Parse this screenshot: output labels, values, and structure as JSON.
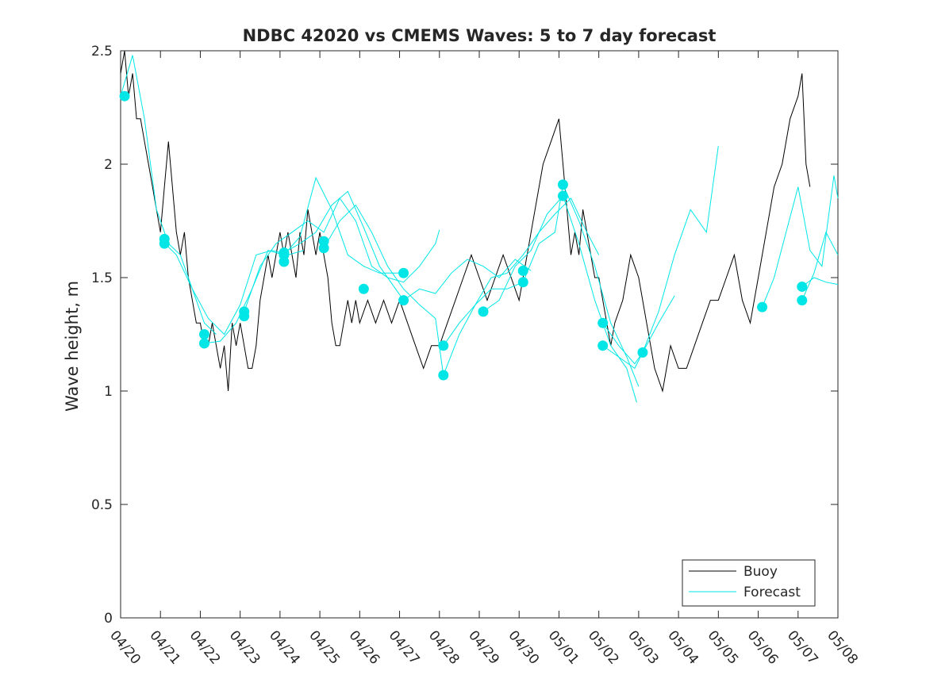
{
  "chart_data": {
    "type": "line",
    "title": "NDBC 42020 vs CMEMS Waves: 5 to 7 day forecast",
    "xlabel": "",
    "ylabel": "Wave height, m",
    "xlim": [
      "04/20",
      "05/08"
    ],
    "ylim": [
      0,
      2.5
    ],
    "x_unit": "days since 04/20",
    "x_ticks": [
      "04/20",
      "04/21",
      "04/22",
      "04/23",
      "04/24",
      "04/25",
      "04/26",
      "04/27",
      "04/28",
      "04/29",
      "04/30",
      "05/01",
      "05/02",
      "05/03",
      "05/04",
      "05/05",
      "05/06",
      "05/07",
      "05/08"
    ],
    "y_ticks": [
      "0",
      "0.5",
      "1",
      "1.5",
      "2",
      "2.5"
    ],
    "grid": false,
    "legend": {
      "position": "bottom-right",
      "entries": [
        "Buoy",
        "Forecast"
      ]
    },
    "colors": {
      "buoy": "#000000",
      "forecast": "#00e6e6",
      "axes": "#262626"
    },
    "series": [
      {
        "name": "Buoy",
        "color": "#000000",
        "x": [
          0,
          0.1,
          0.2,
          0.3,
          0.4,
          0.5,
          0.6,
          0.7,
          0.8,
          0.9,
          1.0,
          1.1,
          1.2,
          1.3,
          1.4,
          1.5,
          1.6,
          1.7,
          1.8,
          1.9,
          2.0,
          2.1,
          2.2,
          2.3,
          2.4,
          2.5,
          2.6,
          2.7,
          2.8,
          2.9,
          3.0,
          3.1,
          3.2,
          3.3,
          3.4,
          3.5,
          3.6,
          3.7,
          3.8,
          3.9,
          4.0,
          4.1,
          4.2,
          4.3,
          4.4,
          4.5,
          4.6,
          4.7,
          4.8,
          4.9,
          5.0,
          5.1,
          5.2,
          5.3,
          5.4,
          5.5,
          5.6,
          5.7,
          5.8,
          5.9,
          6.0,
          6.2,
          6.4,
          6.6,
          6.8,
          7.0,
          7.2,
          7.4,
          7.6,
          7.8,
          8.0,
          8.2,
          8.4,
          8.6,
          8.8,
          9.0,
          9.2,
          9.4,
          9.6,
          9.8,
          10.0,
          10.2,
          10.4,
          10.6,
          10.8,
          11.0,
          11.1,
          11.2,
          11.3,
          11.4,
          11.5,
          11.6,
          11.7,
          11.8,
          11.9,
          12.0,
          12.1,
          12.2,
          12.3,
          12.4,
          12.6,
          12.8,
          13.0,
          13.2,
          13.4,
          13.6,
          13.8,
          14.0,
          14.2,
          14.4,
          14.6,
          14.8,
          15.0,
          15.2,
          15.4,
          15.6,
          15.8,
          16.0,
          16.2,
          16.4,
          16.6,
          16.8,
          17.0,
          17.1,
          17.2,
          17.3
        ],
        "y": [
          2.4,
          2.5,
          2.3,
          2.4,
          2.2,
          2.2,
          2.1,
          2.0,
          1.9,
          1.8,
          1.7,
          1.9,
          2.1,
          1.9,
          1.7,
          1.6,
          1.7,
          1.5,
          1.4,
          1.3,
          1.3,
          1.2,
          1.2,
          1.3,
          1.2,
          1.1,
          1.2,
          1.0,
          1.3,
          1.2,
          1.3,
          1.2,
          1.1,
          1.1,
          1.2,
          1.4,
          1.5,
          1.6,
          1.5,
          1.6,
          1.7,
          1.6,
          1.7,
          1.6,
          1.5,
          1.7,
          1.6,
          1.8,
          1.7,
          1.6,
          1.7,
          1.6,
          1.5,
          1.3,
          1.2,
          1.2,
          1.3,
          1.4,
          1.3,
          1.4,
          1.3,
          1.4,
          1.3,
          1.4,
          1.3,
          1.4,
          1.3,
          1.2,
          1.1,
          1.2,
          1.2,
          1.3,
          1.4,
          1.5,
          1.6,
          1.5,
          1.4,
          1.5,
          1.6,
          1.5,
          1.4,
          1.6,
          1.8,
          2.0,
          2.1,
          2.2,
          2.0,
          1.8,
          1.6,
          1.7,
          1.6,
          1.8,
          1.7,
          1.6,
          1.5,
          1.5,
          1.4,
          1.3,
          1.2,
          1.3,
          1.4,
          1.6,
          1.5,
          1.3,
          1.1,
          1.0,
          1.2,
          1.1,
          1.1,
          1.2,
          1.3,
          1.4,
          1.4,
          1.5,
          1.6,
          1.4,
          1.3,
          1.5,
          1.7,
          1.9,
          2.0,
          2.2,
          2.3,
          2.4,
          2.0,
          1.9
        ]
      },
      {
        "name": "Forecast",
        "color": "#00e6e6",
        "segments": [
          {
            "x": [
              0,
              0.3,
              0.6,
              0.9,
              1.2,
              1.5,
              1.8,
              2.1,
              2.4
            ],
            "y": [
              2.3,
              2.48,
              2.2,
              1.8,
              1.65,
              1.6,
              1.45,
              1.3,
              1.25
            ]
          },
          {
            "x": [
              1.0,
              1.4,
              1.8,
              2.2,
              2.6,
              3.0,
              3.4,
              3.8,
              4.2,
              4.6
            ],
            "y": [
              1.67,
              1.6,
              1.45,
              1.32,
              1.25,
              1.38,
              1.6,
              1.62,
              1.6,
              1.62
            ]
          },
          {
            "x": [
              2.1,
              2.5,
              2.9,
              3.3,
              3.7,
              4.1,
              4.5,
              4.9,
              5.3,
              5.7,
              6.1,
              6.5,
              7.1
            ],
            "y": [
              1.21,
              1.22,
              1.3,
              1.45,
              1.62,
              1.6,
              1.68,
              1.94,
              1.8,
              1.6,
              1.55,
              1.52,
              1.52
            ]
          },
          {
            "x": [
              3.1,
              3.5,
              3.9,
              4.3,
              4.7,
              5.1,
              5.5,
              5.9,
              6.3,
              6.7,
              7.1,
              7.5,
              7.9,
              8.0
            ],
            "y": [
              1.35,
              1.55,
              1.65,
              1.7,
              1.75,
              1.7,
              1.85,
              1.75,
              1.55,
              1.5,
              1.48,
              1.55,
              1.65,
              1.71
            ]
          },
          {
            "x": [
              4.1,
              4.5,
              4.9,
              5.3,
              5.7,
              6.1,
              6.5,
              7.1,
              7.5,
              7.9,
              8.3,
              8.7,
              9.1,
              9.5,
              9.9,
              10.3
            ],
            "y": [
              1.61,
              1.65,
              1.7,
              1.82,
              1.88,
              1.72,
              1.55,
              1.4,
              1.45,
              1.43,
              1.52,
              1.58,
              1.55,
              1.5,
              1.58,
              1.53
            ]
          },
          {
            "x": [
              5.1,
              5.5,
              5.9,
              6.3,
              6.7,
              7.1,
              7.5,
              7.9,
              8.1,
              8.5,
              8.9,
              9.3,
              9.7,
              10.1,
              10.5,
              10.9,
              11.3,
              11.7,
              12.0
            ],
            "y": [
              1.63,
              1.75,
              1.82,
              1.7,
              1.55,
              1.45,
              1.38,
              1.32,
              1.07,
              1.25,
              1.38,
              1.5,
              1.52,
              1.6,
              1.7,
              1.78,
              1.85,
              1.7,
              1.6
            ]
          },
          {
            "x": [
              8.1,
              8.5,
              8.9,
              9.3,
              9.7,
              10.1,
              10.5,
              10.9,
              11.1,
              11.5,
              11.9,
              12.3,
              12.7,
              13.0
            ],
            "y": [
              1.2,
              1.3,
              1.38,
              1.45,
              1.45,
              1.48,
              1.65,
              1.7,
              1.91,
              1.75,
              1.55,
              1.3,
              1.15,
              1.02
            ]
          },
          {
            "x": [
              9.1,
              9.5,
              9.9,
              10.3,
              10.7,
              11.1,
              11.5,
              11.9,
              12.3,
              12.7,
              12.95
            ],
            "y": [
              1.35,
              1.4,
              1.55,
              1.62,
              1.78,
              1.86,
              1.65,
              1.4,
              1.2,
              1.1,
              0.95
            ]
          },
          {
            "x": [
              12.1,
              12.5,
              12.9,
              13.1,
              13.5,
              13.9,
              14.3,
              14.7,
              15.0
            ],
            "y": [
              1.2,
              1.15,
              1.1,
              1.17,
              1.35,
              1.6,
              1.8,
              1.7,
              2.08
            ]
          },
          {
            "x": [
              12.1,
              12.5,
              12.9,
              13.1,
              13.5,
              13.9
            ],
            "y": [
              1.3,
              1.2,
              1.12,
              1.17,
              1.3,
              1.42
            ]
          },
          {
            "x": [
              16.1,
              16.4,
              16.7,
              17.0,
              17.3,
              17.6,
              17.9,
              18.0
            ],
            "y": [
              1.37,
              1.5,
              1.7,
              1.9,
              1.62,
              1.55,
              1.95,
              1.85
            ]
          },
          {
            "x": [
              17.1,
              17.4,
              17.7,
              18.0
            ],
            "y": [
              1.4,
              1.52,
              1.7,
              1.6
            ]
          },
          {
            "x": [
              17.1,
              17.4,
              17.7,
              18.0
            ],
            "y": [
              1.46,
              1.5,
              1.48,
              1.47
            ]
          }
        ],
        "markers": {
          "x": [
            0.1,
            1.1,
            1.1,
            2.1,
            2.1,
            3.1,
            3.1,
            4.1,
            4.1,
            4.1,
            5.1,
            5.1,
            6.1,
            7.1,
            7.1,
            8.1,
            8.1,
            9.1,
            10.1,
            10.1,
            11.1,
            11.1,
            12.1,
            12.1,
            13.1,
            16.1,
            17.1,
            17.1
          ],
          "y": [
            2.3,
            1.67,
            1.65,
            1.25,
            1.21,
            1.35,
            1.33,
            1.61,
            1.6,
            1.57,
            1.66,
            1.63,
            1.45,
            1.52,
            1.4,
            1.2,
            1.07,
            1.35,
            1.53,
            1.48,
            1.91,
            1.86,
            1.3,
            1.2,
            1.17,
            1.37,
            1.46,
            1.4
          ]
        }
      }
    ]
  }
}
